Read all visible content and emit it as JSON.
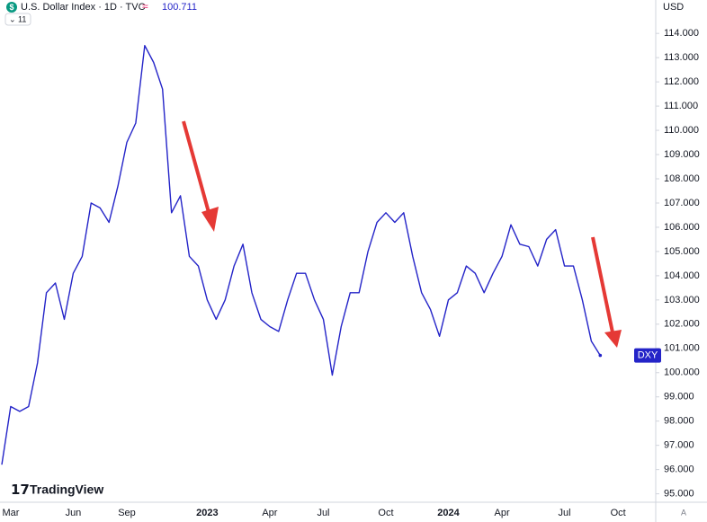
{
  "chart_data": {
    "type": "line",
    "title": "U.S. Dollar Index · 1D · TVC",
    "indicator_count": "11",
    "currency": "USD",
    "brand": "TradingView",
    "scale_button": "A",
    "categories": [
      null,
      "Mar",
      null,
      null,
      null,
      null,
      null,
      null,
      "Jun",
      null,
      null,
      null,
      null,
      null,
      "Sep",
      null,
      null,
      null,
      null,
      null,
      null,
      null,
      null,
      "2023",
      null,
      null,
      null,
      null,
      null,
      null,
      "Apr",
      null,
      null,
      null,
      null,
      null,
      "Jul",
      null,
      null,
      null,
      null,
      null,
      null,
      "Oct",
      null,
      null,
      null,
      null,
      null,
      null,
      "2024",
      null,
      null,
      null,
      null,
      null,
      "Apr",
      null,
      null,
      null,
      null,
      null,
      null,
      "Jul",
      null,
      null,
      null,
      null,
      null,
      "Oct",
      null
    ],
    "series": [
      {
        "name": "DXY",
        "color": "#2424c8",
        "values": [
          96.2,
          98.6,
          98.4,
          98.6,
          100.4,
          103.3,
          103.7,
          102.2,
          104.1,
          104.8,
          107.0,
          106.8,
          106.2,
          107.7,
          109.5,
          110.3,
          113.5,
          112.8,
          111.7,
          106.6,
          107.3,
          104.8,
          104.4,
          103.0,
          102.2,
          103.0,
          104.4,
          105.3,
          103.3,
          102.2,
          101.9,
          101.7,
          103.0,
          104.1,
          104.1,
          103.0,
          102.2,
          99.9,
          101.9,
          103.3,
          103.3,
          105.0,
          106.2,
          106.6,
          106.2,
          106.6,
          104.8,
          103.3,
          102.6,
          101.5,
          103.0,
          103.3,
          104.4,
          104.1,
          103.3,
          104.1,
          104.8,
          106.1,
          105.3,
          105.2,
          104.4,
          105.5,
          105.9,
          104.4,
          104.4,
          103.0,
          101.3,
          100.711,
          null,
          null,
          null
        ]
      }
    ],
    "ylim": [
      94.8,
      114.6
    ],
    "yticks": [
      {
        "value": 95,
        "label": "95.000"
      },
      {
        "value": 96,
        "label": "96.000"
      },
      {
        "value": 97,
        "label": "97.000"
      },
      {
        "value": 98,
        "label": "98.000"
      },
      {
        "value": 99,
        "label": "99.000"
      },
      {
        "value": 100,
        "label": "100.000"
      },
      {
        "value": 101,
        "label": "101.000"
      },
      {
        "value": 102,
        "label": "102.000"
      },
      {
        "value": 103,
        "label": "103.000"
      },
      {
        "value": 104,
        "label": "104.000"
      },
      {
        "value": 105,
        "label": "105.000"
      },
      {
        "value": 106,
        "label": "106.000"
      },
      {
        "value": 107,
        "label": "107.000"
      },
      {
        "value": 108,
        "label": "108.000"
      },
      {
        "value": 109,
        "label": "109.000"
      },
      {
        "value": 110,
        "label": "110.000"
      },
      {
        "value": 111,
        "label": "111.000"
      },
      {
        "value": 112,
        "label": "112.000"
      },
      {
        "value": 113,
        "label": "113.000"
      },
      {
        "value": 114,
        "label": "114.000"
      }
    ],
    "grid": false
  }
}
